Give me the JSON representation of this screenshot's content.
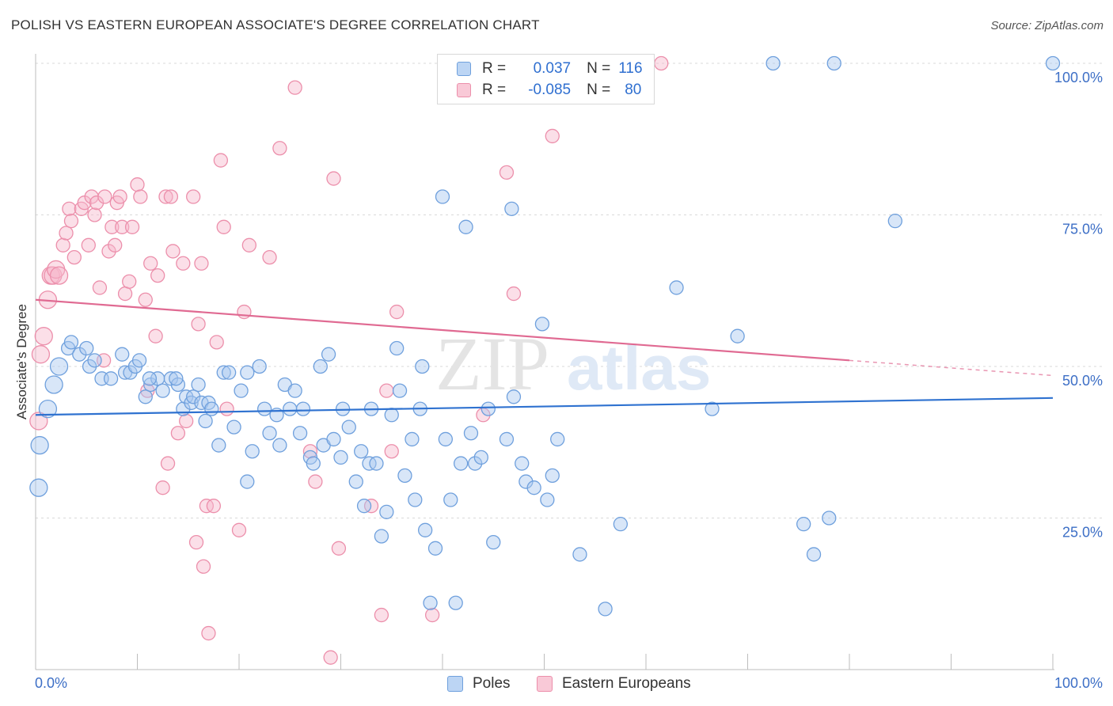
{
  "title": "POLISH VS EASTERN EUROPEAN ASSOCIATE'S DEGREE CORRELATION CHART",
  "source": "Source: ZipAtlas.com",
  "legend": {
    "rows": [
      {
        "r_label": "R =",
        "r_value": "0.037",
        "n_label": "N =",
        "n_value": "116"
      },
      {
        "r_label": "R =",
        "r_value": "-0.085",
        "n_label": "N =",
        "n_value": "80"
      }
    ]
  },
  "watermark": {
    "zip": "ZIP",
    "atlas": "atlas"
  },
  "colors": {
    "poles_fill": "#a8c8f0",
    "poles_stroke": "#6fa0dd",
    "poles_line": "#2f72d0",
    "ee_fill": "#f7b8cb",
    "ee_stroke": "#ec8fab",
    "ee_line": "#e06a92",
    "tick": "#3d6fc6",
    "grid": "#d9d9d9"
  },
  "chart_data": {
    "type": "scatter",
    "title": "POLISH VS EASTERN EUROPEAN ASSOCIATE'S DEGREE CORRELATION CHART",
    "xlabel": "",
    "ylabel": "Associate's Degree",
    "xlim": [
      0,
      100
    ],
    "ylim": [
      0,
      100
    ],
    "x_tick_labels": [
      "0.0%",
      "100.0%"
    ],
    "y_tick_labels": [
      "25.0%",
      "50.0%",
      "75.0%",
      "100.0%"
    ],
    "y_ticks": [
      25,
      50,
      75,
      100
    ],
    "grid": "horizontal dashed",
    "legend_position": "bottom-center",
    "series": [
      {
        "name": "Poles",
        "r": 0.037,
        "n": 116,
        "trend": [
          [
            0,
            42.0
          ],
          [
            100,
            44.8
          ]
        ],
        "points": [
          [
            0.3,
            30
          ],
          [
            0.4,
            37
          ],
          [
            1.2,
            43
          ],
          [
            1.8,
            47
          ],
          [
            2.3,
            50
          ],
          [
            3.2,
            53
          ],
          [
            3.5,
            54
          ],
          [
            4.3,
            52
          ],
          [
            5.0,
            53
          ],
          [
            5.3,
            50
          ],
          [
            5.8,
            51
          ],
          [
            6.5,
            48
          ],
          [
            7.4,
            48
          ],
          [
            8.5,
            52
          ],
          [
            8.8,
            49
          ],
          [
            9.3,
            49
          ],
          [
            9.8,
            50
          ],
          [
            10.2,
            51
          ],
          [
            10.8,
            45
          ],
          [
            11.3,
            47
          ],
          [
            12.0,
            48
          ],
          [
            12.5,
            46
          ],
          [
            13.3,
            48
          ],
          [
            14.0,
            47
          ],
          [
            14.5,
            43
          ],
          [
            14.8,
            45
          ],
          [
            15.3,
            44
          ],
          [
            15.5,
            45
          ],
          [
            16.0,
            47
          ],
          [
            16.3,
            44
          ],
          [
            16.7,
            41
          ],
          [
            17.0,
            44
          ],
          [
            17.3,
            43
          ],
          [
            18.0,
            37
          ],
          [
            18.5,
            49
          ],
          [
            19.0,
            49
          ],
          [
            19.5,
            40
          ],
          [
            20.2,
            46
          ],
          [
            20.8,
            31
          ],
          [
            21.3,
            36
          ],
          [
            22.0,
            50
          ],
          [
            22.5,
            43
          ],
          [
            23.0,
            39
          ],
          [
            23.7,
            42
          ],
          [
            24.0,
            37
          ],
          [
            24.5,
            47
          ],
          [
            25.0,
            43
          ],
          [
            25.5,
            46
          ],
          [
            26.0,
            39
          ],
          [
            26.3,
            43
          ],
          [
            27.0,
            35
          ],
          [
            27.3,
            34
          ],
          [
            28.0,
            50
          ],
          [
            28.3,
            37
          ],
          [
            28.8,
            52
          ],
          [
            29.3,
            38
          ],
          [
            30.0,
            35
          ],
          [
            30.2,
            43
          ],
          [
            30.8,
            40
          ],
          [
            31.5,
            31
          ],
          [
            32.0,
            36
          ],
          [
            32.3,
            27
          ],
          [
            32.8,
            34
          ],
          [
            33.0,
            43
          ],
          [
            33.5,
            34
          ],
          [
            34.0,
            22
          ],
          [
            34.5,
            26
          ],
          [
            35.0,
            42
          ],
          [
            35.5,
            53
          ],
          [
            35.8,
            46
          ],
          [
            36.3,
            32
          ],
          [
            37.0,
            38
          ],
          [
            37.3,
            28
          ],
          [
            37.8,
            43
          ],
          [
            38.3,
            23
          ],
          [
            38.8,
            11
          ],
          [
            39.3,
            20
          ],
          [
            40.0,
            78
          ],
          [
            40.3,
            38
          ],
          [
            40.8,
            28
          ],
          [
            41.3,
            11
          ],
          [
            41.8,
            34
          ],
          [
            42.3,
            73
          ],
          [
            42.8,
            39
          ],
          [
            43.2,
            34
          ],
          [
            43.8,
            35
          ],
          [
            44.5,
            43
          ],
          [
            45.0,
            21
          ],
          [
            46.3,
            38
          ],
          [
            46.8,
            76
          ],
          [
            47.0,
            45
          ],
          [
            47.8,
            34
          ],
          [
            48.2,
            31
          ],
          [
            49.0,
            30
          ],
          [
            49.8,
            57
          ],
          [
            50.3,
            28
          ],
          [
            50.8,
            32
          ],
          [
            51.3,
            38
          ],
          [
            53.5,
            19
          ],
          [
            54.0,
            100
          ],
          [
            56.0,
            10
          ],
          [
            57.5,
            24
          ],
          [
            63.0,
            63
          ],
          [
            66.5,
            43
          ],
          [
            69.0,
            55
          ],
          [
            72.5,
            100
          ],
          [
            75.5,
            24
          ],
          [
            76.5,
            19
          ],
          [
            78.0,
            25
          ],
          [
            78.5,
            100
          ],
          [
            84.5,
            74
          ],
          [
            100.0,
            100
          ],
          [
            11.2,
            48
          ],
          [
            13.8,
            48
          ],
          [
            20.8,
            49
          ],
          [
            38.0,
            50
          ]
        ]
      },
      {
        "name": "Eastern Europeans",
        "r": -0.085,
        "n": 80,
        "trend": [
          [
            0,
            61.0
          ],
          [
            80,
            51.0
          ]
        ],
        "trend_dashed": [
          [
            80,
            51.0
          ],
          [
            100,
            48.5
          ]
        ],
        "points": [
          [
            0.3,
            41
          ],
          [
            0.5,
            52
          ],
          [
            0.8,
            55
          ],
          [
            1.2,
            61
          ],
          [
            1.5,
            65
          ],
          [
            1.7,
            65
          ],
          [
            2.0,
            66
          ],
          [
            2.3,
            65
          ],
          [
            2.7,
            70
          ],
          [
            3.0,
            72
          ],
          [
            3.3,
            76
          ],
          [
            3.5,
            74
          ],
          [
            3.8,
            68
          ],
          [
            4.5,
            76
          ],
          [
            4.8,
            77
          ],
          [
            5.2,
            70
          ],
          [
            5.5,
            78
          ],
          [
            5.8,
            75
          ],
          [
            6.0,
            77
          ],
          [
            6.3,
            63
          ],
          [
            6.7,
            51
          ],
          [
            6.8,
            78
          ],
          [
            7.2,
            69
          ],
          [
            7.5,
            73
          ],
          [
            7.8,
            70
          ],
          [
            8.0,
            77
          ],
          [
            8.3,
            78
          ],
          [
            8.5,
            73
          ],
          [
            8.8,
            62
          ],
          [
            9.2,
            64
          ],
          [
            9.5,
            73
          ],
          [
            10.0,
            80
          ],
          [
            10.3,
            78
          ],
          [
            10.8,
            61
          ],
          [
            11.0,
            46
          ],
          [
            11.3,
            67
          ],
          [
            11.8,
            55
          ],
          [
            12.0,
            65
          ],
          [
            12.5,
            30
          ],
          [
            12.8,
            78
          ],
          [
            13.0,
            34
          ],
          [
            13.3,
            78
          ],
          [
            13.5,
            69
          ],
          [
            14.0,
            39
          ],
          [
            14.5,
            67
          ],
          [
            14.8,
            41
          ],
          [
            15.5,
            78
          ],
          [
            15.8,
            21
          ],
          [
            16.0,
            57
          ],
          [
            16.3,
            67
          ],
          [
            16.5,
            17
          ],
          [
            16.8,
            27
          ],
          [
            17.0,
            6
          ],
          [
            17.5,
            27
          ],
          [
            17.8,
            54
          ],
          [
            18.2,
            84
          ],
          [
            18.5,
            73
          ],
          [
            18.8,
            43
          ],
          [
            20.0,
            23
          ],
          [
            20.5,
            59
          ],
          [
            21.0,
            70
          ],
          [
            23.0,
            68
          ],
          [
            24.0,
            86
          ],
          [
            25.5,
            96
          ],
          [
            27.0,
            36
          ],
          [
            27.5,
            31
          ],
          [
            29.0,
            2
          ],
          [
            29.3,
            81
          ],
          [
            29.8,
            20
          ],
          [
            33.0,
            27
          ],
          [
            34.0,
            9
          ],
          [
            34.5,
            46
          ],
          [
            35.0,
            36
          ],
          [
            35.5,
            59
          ],
          [
            39.0,
            9
          ],
          [
            44.0,
            42
          ],
          [
            46.3,
            82
          ],
          [
            47.0,
            62
          ],
          [
            50.8,
            88
          ],
          [
            61.5,
            100
          ]
        ]
      }
    ]
  },
  "bottom_legend": [
    {
      "label": "Poles"
    },
    {
      "label": "Eastern Europeans"
    }
  ]
}
